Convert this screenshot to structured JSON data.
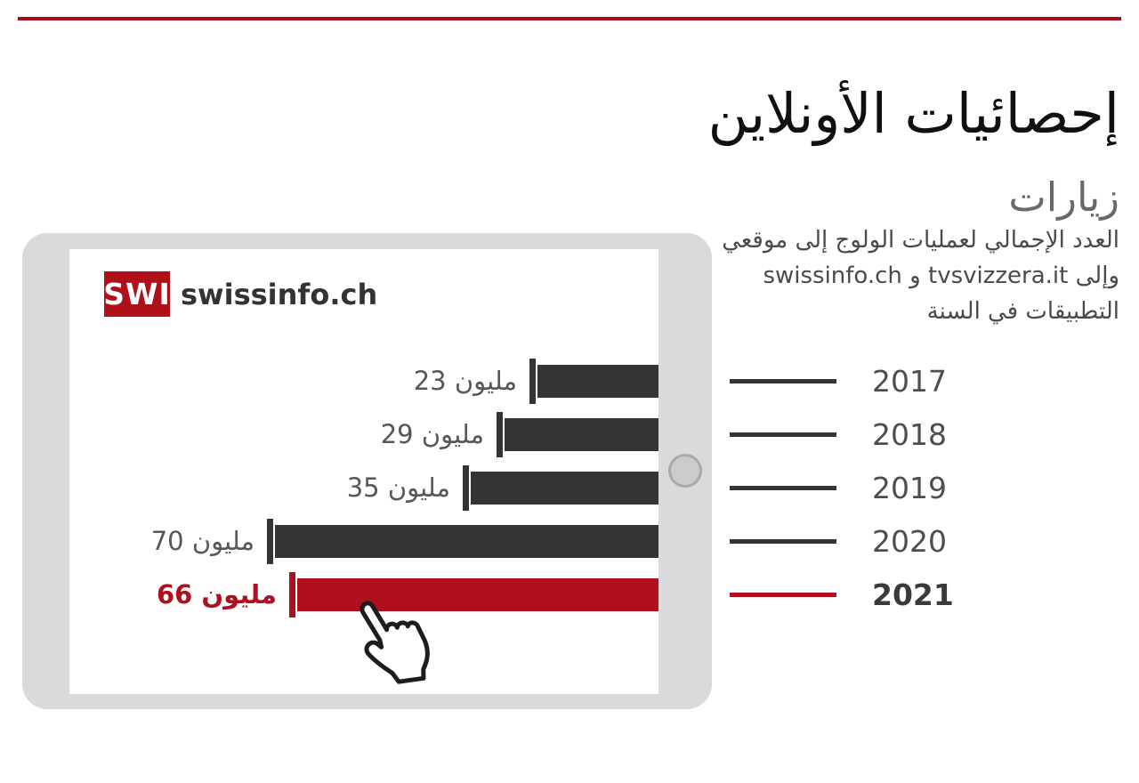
{
  "header": {
    "title": "إحصائيات الأونلاين",
    "rule_color": "#a60d1c"
  },
  "section": {
    "heading": "زيارات",
    "description_lines": [
      "العدد الإجمالي لعمليات الولوج إلى موقعي",
      "وإلى tvsvizzera.it و swissinfo.ch",
      "التطبيقات في السنة"
    ]
  },
  "logo": {
    "badge_text": "SWI",
    "wordmark": "swissinfo.ch",
    "badge_color": "#b01119",
    "wordmark_color": "#333333"
  },
  "device": {
    "kind": "tablet",
    "body_color": "#d9dadb",
    "screen_color": "#ffffff"
  },
  "chart_data": {
    "type": "bar",
    "orientation": "horizontal-right-anchored",
    "title": "زيارات",
    "subtitle": "العدد الإجمالي لعمليات الولوج إلى موقعي swissinfo.ch و tvsvizzera.it وإلى التطبيقات في السنة",
    "unit": "مليون",
    "categories": [
      "2017",
      "2018",
      "2019",
      "2020",
      "2021"
    ],
    "values": [
      23,
      29,
      35,
      70,
      66
    ],
    "value_labels": [
      "23 مليون",
      "29 مليون",
      "35 مليون",
      "70 مليون",
      "66 مليون"
    ],
    "highlight_index": 4,
    "highlight_category": "2021",
    "bar_color": "#343434",
    "highlight_color": "#b0101e",
    "label_color": "#575757",
    "legend_text_color": "#4e4e4e",
    "legend_highlight_text_color": "#3a3a3a",
    "value_axis_max": 70,
    "grid": "off",
    "legend_position": "right"
  },
  "cursor": {
    "type": "hand-pointer"
  }
}
